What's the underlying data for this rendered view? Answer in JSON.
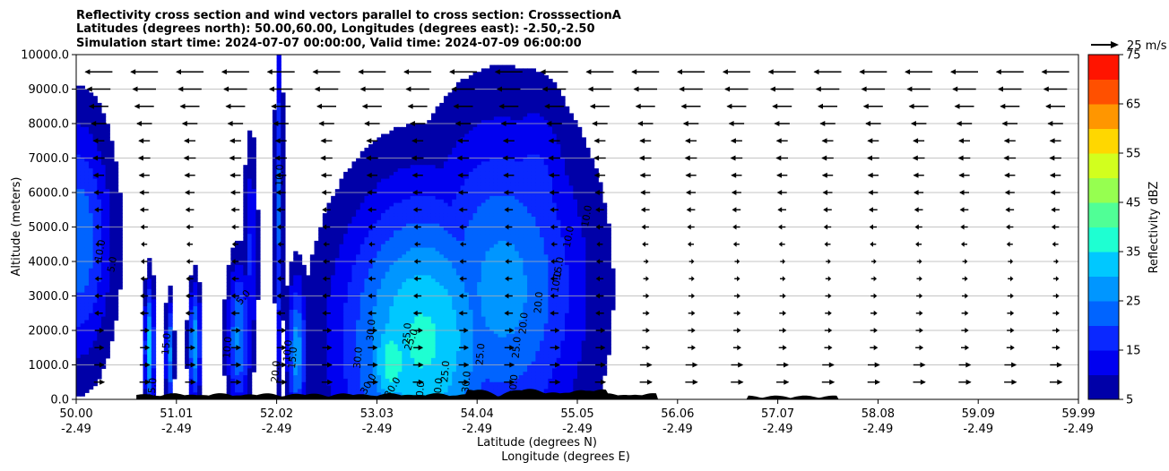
{
  "chart_data": {
    "type": "filled-contour",
    "title_lines": [
      "Reflectivity cross section and wind vectors parallel to cross section: CrosssectionA",
      "Latitudes (degrees north): 50.00,60.00, Longitudes (degrees east): -2.50,-2.50",
      "Simulation start time: 2024-07-07 00:00:00, Valid time: 2024-07-09 06:00:00"
    ],
    "ylabel": "Altitude (meters)",
    "xlabel_lat": "Latitude (degrees N)",
    "xlabel_lon": "Longitude (degrees E)",
    "ylim": [
      0,
      10000
    ],
    "yticks": [
      "0.0",
      "1000.0",
      "2000.0",
      "3000.0",
      "4000.0",
      "5000.0",
      "6000.0",
      "7000.0",
      "8000.0",
      "9000.0",
      "10000.0"
    ],
    "xticks_lat": [
      "50.00",
      "51.01",
      "52.02",
      "53.03",
      "54.04",
      "55.05",
      "56.06",
      "57.07",
      "58.08",
      "59.09",
      "59.99"
    ],
    "xticks_lon": [
      "-2.49",
      "-2.49",
      "-2.49",
      "-2.49",
      "-2.49",
      "-2.49",
      "-2.49",
      "-2.49",
      "-2.49",
      "-2.49",
      "-2.49"
    ],
    "grid": "horizontal",
    "colorbar": {
      "label": "Reflectivity dBZ",
      "levels": [
        5,
        10,
        15,
        20,
        25,
        30,
        35,
        40,
        45,
        50,
        55,
        60,
        65,
        70,
        75
      ],
      "ticks": [
        "5",
        "15",
        "25",
        "35",
        "45",
        "55",
        "65",
        "75"
      ],
      "colors": [
        "#0000a8",
        "#0000f0",
        "#0a28ff",
        "#0064ff",
        "#0096ff",
        "#00c8ff",
        "#1effd2",
        "#50ff96",
        "#96ff50",
        "#d2ff1e",
        "#ffd700",
        "#ff9600",
        "#ff5000",
        "#ff1400",
        "#a50000"
      ]
    },
    "wind_key_label": "25 m/s",
    "contour_labels": [
      {
        "text": "10.0",
        "x_deg": 50.27,
        "alt": 4300,
        "rot": -80
      },
      {
        "text": "5.0",
        "x_deg": 50.39,
        "alt": 3900,
        "rot": -80
      },
      {
        "text": "5.0",
        "x_deg": 51.69,
        "alt": 2900,
        "rot": -50
      },
      {
        "text": "10.0",
        "x_deg": 51.54,
        "alt": 1500,
        "rot": -85
      },
      {
        "text": "10.0",
        "x_deg": 52.14,
        "alt": 1400,
        "rot": -85
      },
      {
        "text": "10.0",
        "x_deg": 52.06,
        "alt": 6500,
        "rot": -88
      },
      {
        "text": "15.0",
        "x_deg": 50.93,
        "alt": 1600,
        "rot": -85
      },
      {
        "text": "15.0",
        "x_deg": 52.19,
        "alt": 1200,
        "rot": -85
      },
      {
        "text": "20.0",
        "x_deg": 52.02,
        "alt": 800,
        "rot": -85
      },
      {
        "text": "25.0",
        "x_deg": 50.79,
        "alt": 300,
        "rot": -85
      },
      {
        "text": "30.0",
        "x_deg": 52.97,
        "alt": 2000,
        "rot": -85
      },
      {
        "text": "30.0",
        "x_deg": 52.84,
        "alt": 1200,
        "rot": -85
      },
      {
        "text": "30.0",
        "x_deg": 52.94,
        "alt": 400,
        "rot": -60
      },
      {
        "text": "30.0",
        "x_deg": 53.18,
        "alt": 300,
        "rot": -60
      },
      {
        "text": "25.0",
        "x_deg": 53.33,
        "alt": 1900,
        "rot": -85
      },
      {
        "text": "25.0",
        "x_deg": 53.37,
        "alt": 1700,
        "rot": -70
      },
      {
        "text": "25.0",
        "x_deg": 53.71,
        "alt": 800,
        "rot": -85
      },
      {
        "text": "30.0",
        "x_deg": 53.92,
        "alt": 500,
        "rot": -85
      },
      {
        "text": "25.0",
        "x_deg": 54.06,
        "alt": 1300,
        "rot": -85
      },
      {
        "text": "25.0",
        "x_deg": 54.42,
        "alt": 1500,
        "rot": -85
      },
      {
        "text": "20.0",
        "x_deg": 54.49,
        "alt": 2200,
        "rot": -85
      },
      {
        "text": "20.0",
        "x_deg": 54.64,
        "alt": 2800,
        "rot": -85
      },
      {
        "text": "20.0",
        "x_deg": 54.39,
        "alt": 400,
        "rot": -85
      },
      {
        "text": "15.0",
        "x_deg": 54.84,
        "alt": 3800,
        "rot": -80
      },
      {
        "text": "10.0",
        "x_deg": 54.94,
        "alt": 4700,
        "rot": -80
      },
      {
        "text": "10.0",
        "x_deg": 54.82,
        "alt": 3400,
        "rot": -80
      },
      {
        "text": "10.0",
        "x_deg": 55.12,
        "alt": 5300,
        "rot": -80
      },
      {
        "text": "20.0",
        "x_deg": 53.64,
        "alt": 300,
        "rot": -85
      },
      {
        "text": "20.0",
        "x_deg": 53.46,
        "alt": 200,
        "rot": -85
      }
    ]
  }
}
